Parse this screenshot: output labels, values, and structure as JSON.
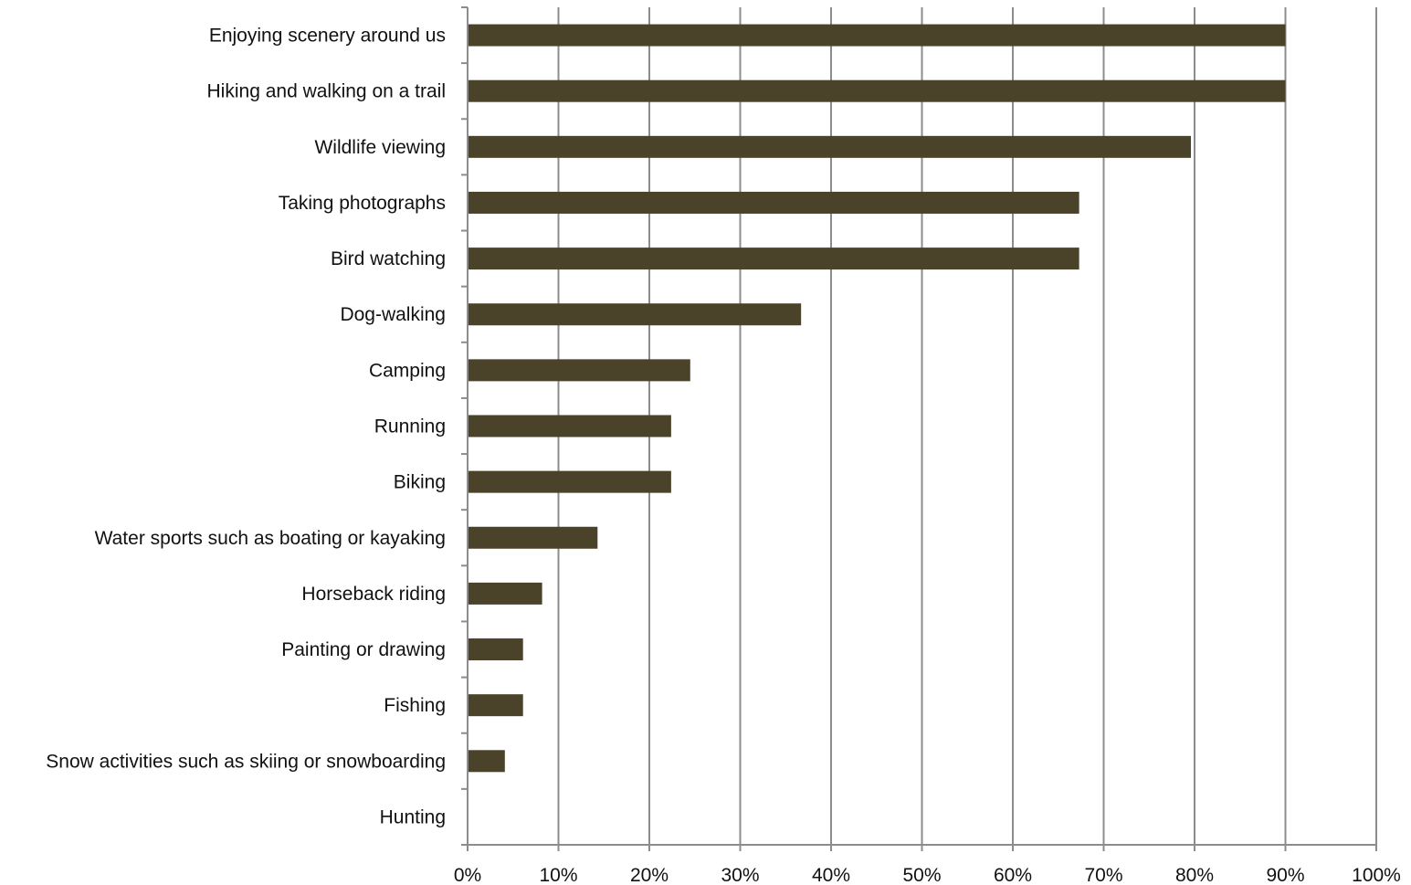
{
  "chart_data": {
    "type": "bar",
    "orientation": "horizontal",
    "title": "",
    "xlabel": "",
    "ylabel": "",
    "categories": [
      "Enjoying scenery around us",
      "Hiking and walking on a trail",
      "Wildlife viewing",
      "Taking photographs",
      "Bird watching",
      "Dog-walking",
      "Camping",
      "Running",
      "Biking",
      "Water sports such as boating or kayaking",
      "Horseback riding",
      "Painting or drawing",
      "Fishing",
      "Snow activities such as skiing or snowboarding",
      "Hunting"
    ],
    "values": [
      90,
      90,
      79.6,
      67.3,
      67.3,
      36.7,
      24.5,
      22.4,
      22.4,
      14.3,
      8.2,
      6.1,
      6.1,
      4.1,
      0
    ],
    "unit": "%",
    "xlim": [
      0,
      100
    ],
    "xticks": [
      "0%",
      "10%",
      "20%",
      "30%",
      "40%",
      "50%",
      "60%",
      "70%",
      "80%",
      "90%",
      "100%"
    ],
    "grid": "vertical",
    "legend": "none",
    "bar_color": "#4a432a",
    "grid_color": "#8c8c8c",
    "axis_color": "#8c8c8c"
  }
}
